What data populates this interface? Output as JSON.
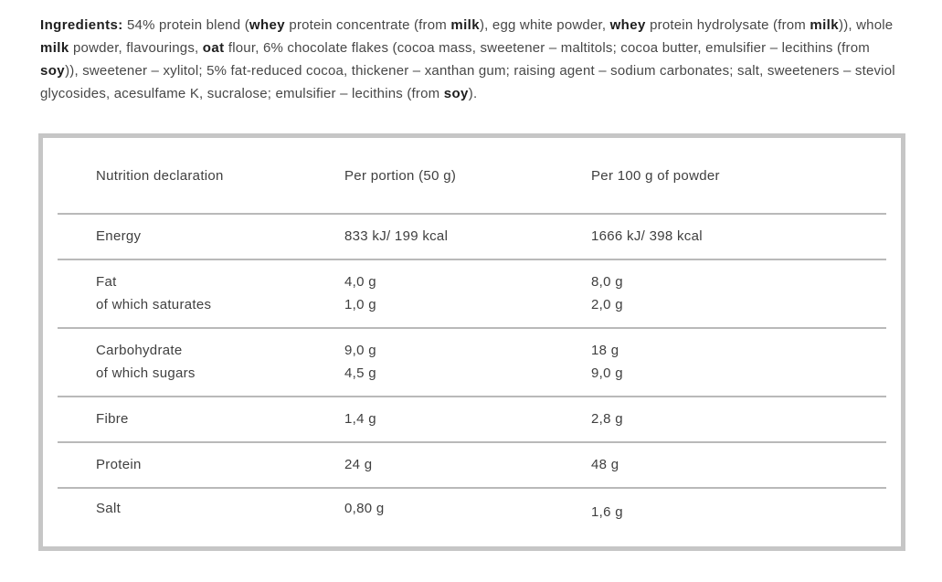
{
  "ingredients": {
    "segments": [
      {
        "text": "Ingredients:",
        "bold": true
      },
      {
        "text": " 54% protein blend (",
        "bold": false
      },
      {
        "text": "whey",
        "bold": true
      },
      {
        "text": " protein concentrate (from ",
        "bold": false
      },
      {
        "text": "milk",
        "bold": true
      },
      {
        "text": "), egg white powder, ",
        "bold": false
      },
      {
        "text": "whey",
        "bold": true
      },
      {
        "text": " protein hydrolysate (from ",
        "bold": false
      },
      {
        "text": "milk",
        "bold": true
      },
      {
        "text": ")), whole ",
        "bold": false
      },
      {
        "text": "milk",
        "bold": true
      },
      {
        "text": " powder, flavourings, ",
        "bold": false
      },
      {
        "text": "oat",
        "bold": true
      },
      {
        "text": " flour, 6% chocolate flakes (cocoa mass, sweetener – maltitols; cocoa butter, emulsifier – lecithins (from ",
        "bold": false
      },
      {
        "text": "soy",
        "bold": true
      },
      {
        "text": ")), sweetener – xylitol; 5% fat-reduced cocoa, thickener – xanthan gum; raising agent – sodium carbonates; salt, sweeteners – steviol glycosides, acesulfame K, sucralose; emulsifier – lecithins (from ",
        "bold": false
      },
      {
        "text": "soy",
        "bold": true
      },
      {
        "text": ").",
        "bold": false
      }
    ]
  },
  "table": {
    "headers": {
      "col1": "Nutrition declaration",
      "col2": "Per portion (50 g)",
      "col3": "Per 100 g of powder"
    },
    "rows": [
      {
        "label": "Energy",
        "portion": "833 kJ/ 199 kcal",
        "per100": "1666 kJ/ 398 kcal"
      },
      {
        "label": "Fat",
        "portion": "4,0 g",
        "per100": "8,0 g",
        "sub_label": "of which saturates",
        "sub_portion": "1,0 g",
        "sub_per100": "2,0 g"
      },
      {
        "label": "Carbohydrate",
        "portion": "9,0 g",
        "per100": "18 g",
        "sub_label": "of which sugars",
        "sub_portion": "4,5 g",
        "sub_per100": "9,0 g"
      },
      {
        "label": "Fibre",
        "portion": "1,4 g",
        "per100": "2,8 g"
      },
      {
        "label": "Protein",
        "portion": "24 g",
        "per100": "48 g"
      },
      {
        "label": "Salt",
        "portion": "0,80 g",
        "per100": "1,6 g"
      }
    ]
  }
}
